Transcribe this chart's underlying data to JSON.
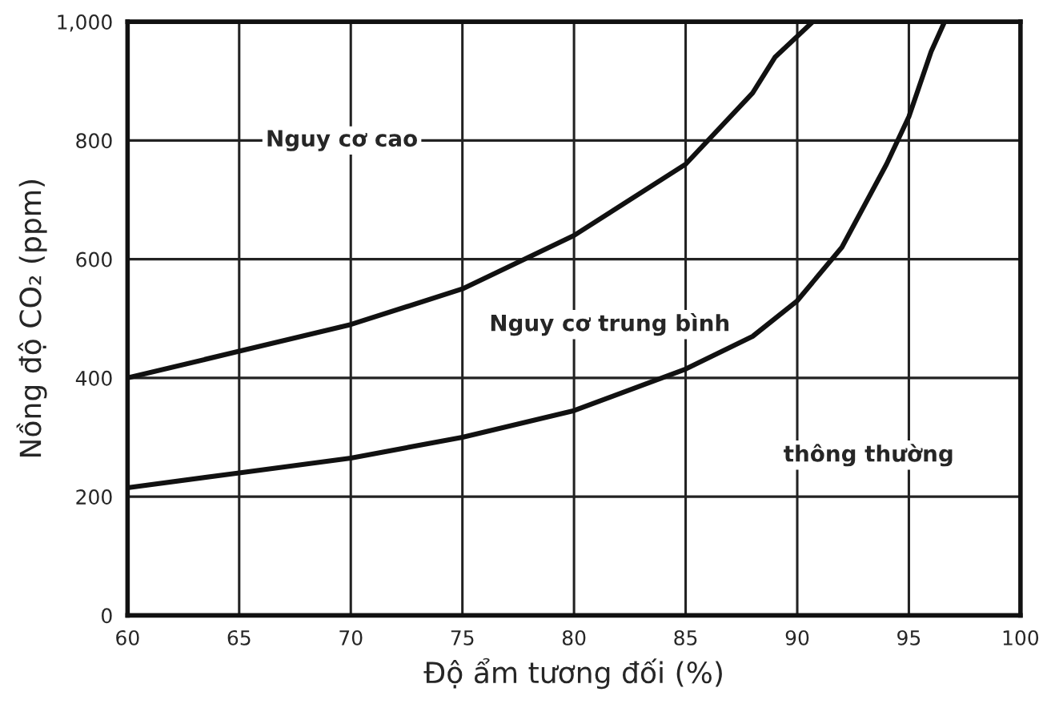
{
  "chart_data": {
    "type": "line",
    "xlabel": "Độ ẩm tương đối (%)",
    "ylabel": "Nồng độ CO₂ (ppm)",
    "series": [
      {
        "color": "#111111",
        "x": [
          60,
          65,
          70,
          75,
          80,
          85,
          88,
          89,
          90.7
        ],
        "values": [
          400,
          445,
          490,
          550,
          640,
          760,
          880,
          940,
          1000
        ]
      },
      {
        "color": "#111111",
        "x": [
          60,
          65,
          70,
          75,
          80,
          85,
          88,
          90,
          92,
          94,
          95,
          96,
          96.6
        ],
        "values": [
          215,
          240,
          265,
          300,
          345,
          415,
          470,
          530,
          620,
          760,
          840,
          950,
          1000
        ]
      }
    ],
    "annotations": [
      "Nguy cơ cao",
      "Nguy cơ trung bình",
      "thông thường"
    ],
    "xlim": [
      60,
      100
    ],
    "xticks": [
      60,
      65,
      70,
      75,
      80,
      85,
      90,
      95,
      100
    ],
    "ylim": [
      0,
      1000
    ],
    "yticks": [
      0,
      200,
      400,
      600,
      800,
      {
        "value": 1000,
        "label": "1,000"
      }
    ],
    "grid": true,
    "marker": "none",
    "line_style": "solid",
    "legend": false
  }
}
